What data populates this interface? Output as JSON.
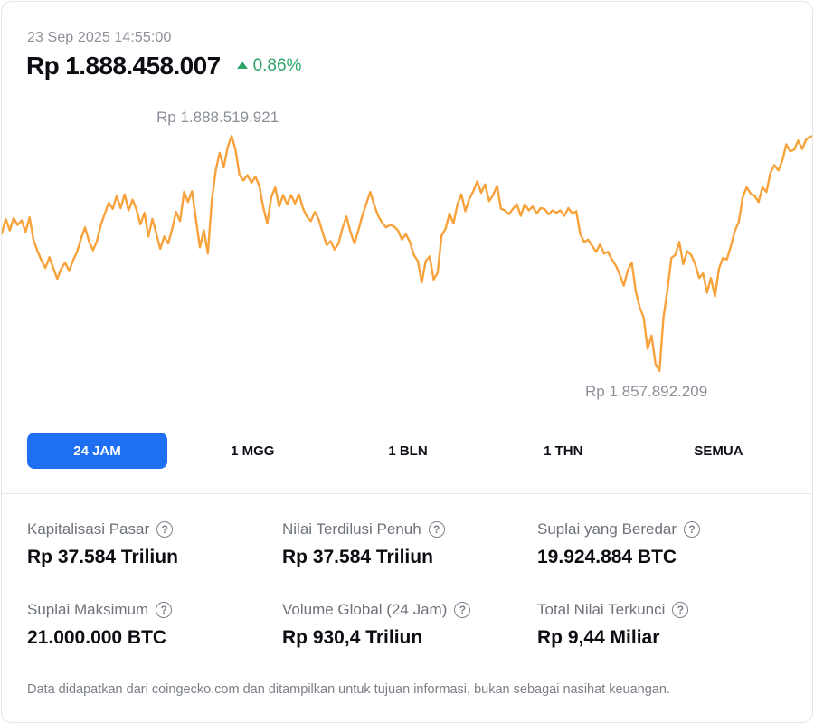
{
  "header": {
    "timestamp": "23 Sep 2025 14:55:00",
    "price": "Rp 1.888.458.007",
    "change": "0.86%",
    "change_direction": "up"
  },
  "colors": {
    "line": "#f7a23b",
    "accent": "#1e6ff2",
    "positive": "#2ea46b"
  },
  "chart_data": {
    "type": "line",
    "high_label": "Rp 1.888.519.921",
    "low_label": "Rp 1.857.892.209",
    "high": 1888519921,
    "low": 1857892209,
    "values": [
      1875800000,
      1877700000,
      1876200000,
      1877800000,
      1876900000,
      1877500000,
      1876000000,
      1877900000,
      1875000000,
      1873500000,
      1872300000,
      1871300000,
      1872700000,
      1871300000,
      1869900000,
      1871200000,
      1872000000,
      1870900000,
      1872300000,
      1873400000,
      1875100000,
      1876600000,
      1874800000,
      1873600000,
      1874800000,
      1876900000,
      1878400000,
      1879800000,
      1879000000,
      1880700000,
      1879100000,
      1880900000,
      1878800000,
      1880200000,
      1878900000,
      1877000000,
      1878500000,
      1875400000,
      1877700000,
      1875800000,
      1873800000,
      1875400000,
      1874500000,
      1876400000,
      1878600000,
      1877400000,
      1881200000,
      1879900000,
      1881300000,
      1877700000,
      1874000000,
      1876200000,
      1873200000,
      1880100000,
      1884000000,
      1886300000,
      1884400000,
      1887000000,
      1888500000,
      1886700000,
      1883400000,
      1882700000,
      1883400000,
      1882400000,
      1883200000,
      1882000000,
      1879200000,
      1877100000,
      1880500000,
      1881800000,
      1879300000,
      1880800000,
      1879600000,
      1880800000,
      1879700000,
      1880900000,
      1879100000,
      1878000000,
      1877400000,
      1878600000,
      1877600000,
      1875900000,
      1874300000,
      1874800000,
      1873700000,
      1874500000,
      1876500000,
      1878000000,
      1876000000,
      1874500000,
      1876200000,
      1878100000,
      1879700000,
      1881200000,
      1879500000,
      1878100000,
      1877200000,
      1876600000,
      1876900000,
      1876700000,
      1876200000,
      1875000000,
      1875700000,
      1874700000,
      1873000000,
      1872200000,
      1869400000,
      1872200000,
      1872800000,
      1869800000,
      1870700000,
      1875500000,
      1876400000,
      1878400000,
      1877100000,
      1879600000,
      1880900000,
      1878700000,
      1880300000,
      1881300000,
      1882600000,
      1881100000,
      1882200000,
      1880000000,
      1880800000,
      1882000000,
      1879000000,
      1878800000,
      1878300000,
      1879000000,
      1879600000,
      1878100000,
      1879600000,
      1878800000,
      1879300000,
      1878400000,
      1879100000,
      1879000000,
      1878300000,
      1878800000,
      1878500000,
      1878800000,
      1878100000,
      1879100000,
      1878400000,
      1878700000,
      1875700000,
      1874700000,
      1875000000,
      1874200000,
      1873400000,
      1874400000,
      1873200000,
      1873400000,
      1872400000,
      1871600000,
      1870400000,
      1869000000,
      1871000000,
      1872000000,
      1868300000,
      1866200000,
      1864900000,
      1860800000,
      1862500000,
      1858800000,
      1857900000,
      1864800000,
      1868400000,
      1872600000,
      1873000000,
      1874700000,
      1871800000,
      1873500000,
      1873000000,
      1871800000,
      1870000000,
      1870600000,
      1868100000,
      1870000000,
      1867600000,
      1871200000,
      1872600000,
      1872400000,
      1874100000,
      1876100000,
      1877300000,
      1880500000,
      1881800000,
      1881000000,
      1880700000,
      1879900000,
      1881800000,
      1881200000,
      1883700000,
      1884700000,
      1884000000,
      1885300000,
      1887400000,
      1886500000,
      1886700000,
      1887900000,
      1886800000,
      1888000000,
      1888400000,
      1888500000
    ]
  },
  "tabs": [
    {
      "label": "24 JAM",
      "active": true
    },
    {
      "label": "1 MGG",
      "active": false
    },
    {
      "label": "1 BLN",
      "active": false
    },
    {
      "label": "1 THN",
      "active": false
    },
    {
      "label": "SEMUA",
      "active": false
    }
  ],
  "stats": [
    {
      "label": "Kapitalisasi Pasar",
      "value": "Rp 37.584 Triliun"
    },
    {
      "label": "Nilai Terdilusi Penuh",
      "value": "Rp 37.584 Triliun"
    },
    {
      "label": "Suplai yang Beredar",
      "value": "19.924.884 BTC"
    },
    {
      "label": "Suplai Maksimum",
      "value": "21.000.000 BTC"
    },
    {
      "label": "Volume Global (24 Jam)",
      "value": "Rp 930,4 Triliun"
    },
    {
      "label": "Total Nilai Terkunci",
      "value": "Rp 9,44 Miliar"
    }
  ],
  "help_glyph": "?",
  "footnote": "Data didapatkan dari coingecko.com dan ditampilkan untuk tujuan informasi, bukan sebagai nasihat keuangan."
}
